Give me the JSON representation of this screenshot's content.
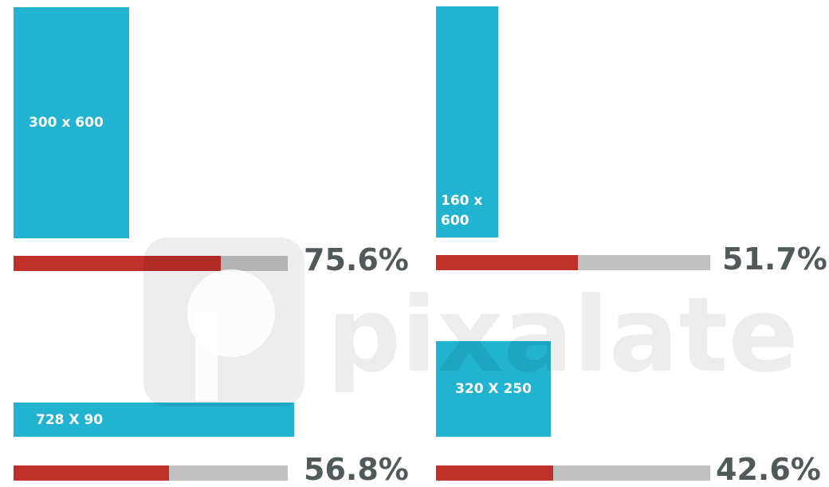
{
  "chart_data": {
    "type": "progress",
    "categories": [
      "300 x 600",
      "160 x 600",
      "728 X 90",
      "320 X 250"
    ],
    "values": [
      75.6,
      51.7,
      56.8,
      42.6
    ],
    "value_labels": [
      "75.6%",
      "51.7%",
      "56.8%",
      "42.6%"
    ],
    "xlim": [
      0,
      100
    ],
    "box_color": "#21b3cf",
    "color": "#c0302a",
    "track_color": "#c1c1c1",
    "watermark": "pixalate"
  }
}
